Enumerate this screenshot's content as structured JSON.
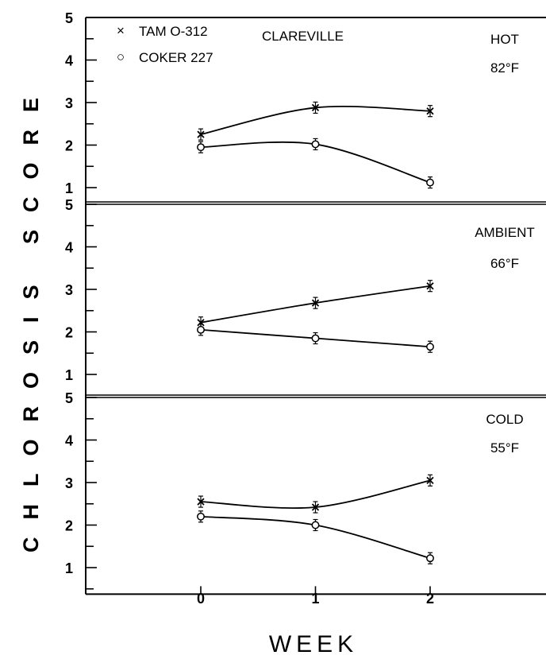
{
  "chart_data": {
    "type": "line",
    "ylabel": "CHLOROSIS SCORE",
    "xlabel": "WEEK",
    "x": [
      0,
      1,
      2
    ],
    "x_ticks": [
      "0",
      "1",
      "2"
    ],
    "ylim": [
      0.6,
      5
    ],
    "y_ticks": [
      "1",
      "2",
      "3",
      "4",
      "5"
    ],
    "grid": false,
    "legend": {
      "placement": "top-left",
      "location": "CLAREVILLE",
      "entries": [
        {
          "marker": "×",
          "label": "TAM O-312"
        },
        {
          "marker": "○",
          "label": "COKER 227"
        }
      ]
    },
    "panels": [
      {
        "condition": "HOT",
        "temperature": "82°F",
        "series": [
          {
            "name": "TAM O-312",
            "marker": "x",
            "values": [
              2.25,
              2.88,
              2.8
            ]
          },
          {
            "name": "COKER 227",
            "marker": "o",
            "values": [
              1.95,
              2.02,
              1.12
            ]
          }
        ]
      },
      {
        "condition": "AMBIENT",
        "temperature": "66°F",
        "series": [
          {
            "name": "TAM O-312",
            "marker": "x",
            "values": [
              2.22,
              2.68,
              3.08
            ]
          },
          {
            "name": "COKER 227",
            "marker": "o",
            "values": [
              2.05,
              1.85,
              1.65
            ]
          }
        ]
      },
      {
        "condition": "COLD",
        "temperature": "55°F",
        "series": [
          {
            "name": "TAM O-312",
            "marker": "x",
            "values": [
              2.55,
              2.42,
              3.05
            ]
          },
          {
            "name": "COKER 227",
            "marker": "o",
            "values": [
              2.2,
              2.0,
              1.22
            ]
          }
        ]
      }
    ]
  }
}
